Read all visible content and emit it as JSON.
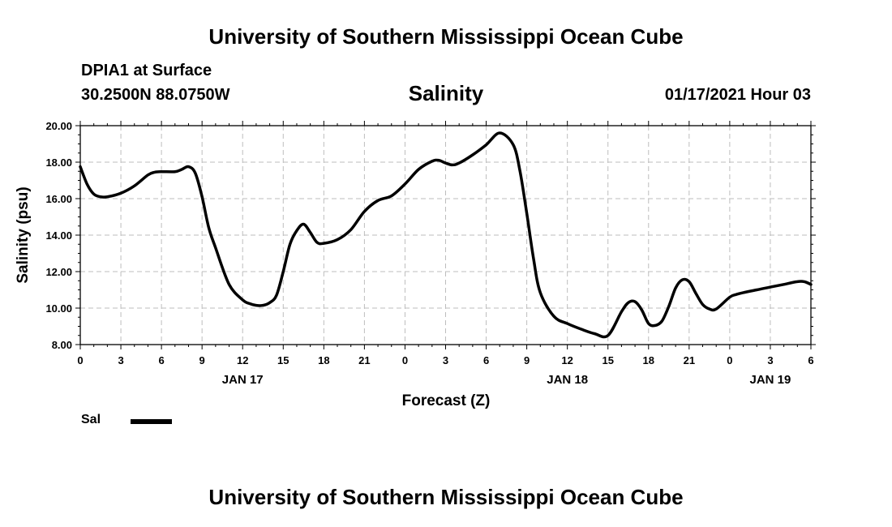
{
  "header": {
    "title": "University of Southern Mississippi Ocean Cube",
    "station": "DPIA1 at Surface",
    "coords": "30.2500N 88.0750W",
    "variable": "Salinity",
    "datetime": "01/17/2021 Hour 03"
  },
  "footer": {
    "title": "University of Southern Mississippi Ocean Cube"
  },
  "legend": {
    "label": "Sal",
    "color": "#000000"
  },
  "chart_data": {
    "type": "line",
    "title": "Salinity",
    "xlabel": "Forecast (Z)",
    "ylabel": "Salinity (psu)",
    "xlim": [
      0,
      54
    ],
    "ylim": [
      8.0,
      20.0
    ],
    "grid": true,
    "legend_position": "bottom-left",
    "y_ticks": [
      "8.00",
      "10.00",
      "12.00",
      "14.00",
      "16.00",
      "18.00",
      "20.00"
    ],
    "x_tick_labels": [
      "0",
      "3",
      "6",
      "9",
      "12",
      "15",
      "18",
      "21",
      "0",
      "3",
      "6",
      "9",
      "12",
      "15",
      "18",
      "21",
      "0",
      "3",
      "6"
    ],
    "date_labels": [
      {
        "label": "JAN 17",
        "at": 12
      },
      {
        "label": "JAN 18",
        "at": 36
      },
      {
        "label": "JAN 19",
        "at": 51
      }
    ],
    "series": [
      {
        "name": "Sal",
        "color": "#000000",
        "x": [
          0,
          0.5,
          1,
          1.5,
          2,
          3,
          4,
          5,
          5.5,
          6,
          7,
          7.5,
          8,
          8.5,
          9,
          9.5,
          10,
          11,
          12,
          12.5,
          13,
          13.5,
          14,
          14.5,
          15,
          15.5,
          16,
          16.5,
          17,
          17.5,
          18,
          19,
          20,
          21,
          22,
          23,
          24,
          25,
          26,
          26.5,
          27,
          27.5,
          28,
          29,
          30,
          31,
          32,
          32.5,
          33,
          33.5,
          34,
          35,
          36,
          37,
          38,
          39,
          40,
          40.5,
          41,
          41.5,
          42,
          42.5,
          43,
          43.5,
          44,
          44.5,
          45,
          45.5,
          46,
          46.5,
          47,
          48,
          48.5,
          49,
          50,
          51,
          52,
          53,
          53.5,
          54
        ],
        "values": [
          17.75,
          16.8,
          16.25,
          16.1,
          16.1,
          16.3,
          16.7,
          17.3,
          17.45,
          17.48,
          17.48,
          17.6,
          17.75,
          17.4,
          16.1,
          14.4,
          13.3,
          11.3,
          10.45,
          10.25,
          10.15,
          10.15,
          10.3,
          10.7,
          12.0,
          13.5,
          14.25,
          14.6,
          14.15,
          13.6,
          13.55,
          13.75,
          14.3,
          15.3,
          15.9,
          16.15,
          16.8,
          17.6,
          18.05,
          18.1,
          17.95,
          17.85,
          17.95,
          18.4,
          18.95,
          19.6,
          18.95,
          17.5,
          15.2,
          12.7,
          10.85,
          9.55,
          9.15,
          8.85,
          8.6,
          8.5,
          9.8,
          10.3,
          10.35,
          9.9,
          9.15,
          9.05,
          9.3,
          10.1,
          11.1,
          11.55,
          11.45,
          10.8,
          10.2,
          9.95,
          9.95,
          10.6,
          10.75,
          10.85,
          11.0,
          11.15,
          11.3,
          11.45,
          11.45,
          11.3
        ]
      }
    ]
  }
}
